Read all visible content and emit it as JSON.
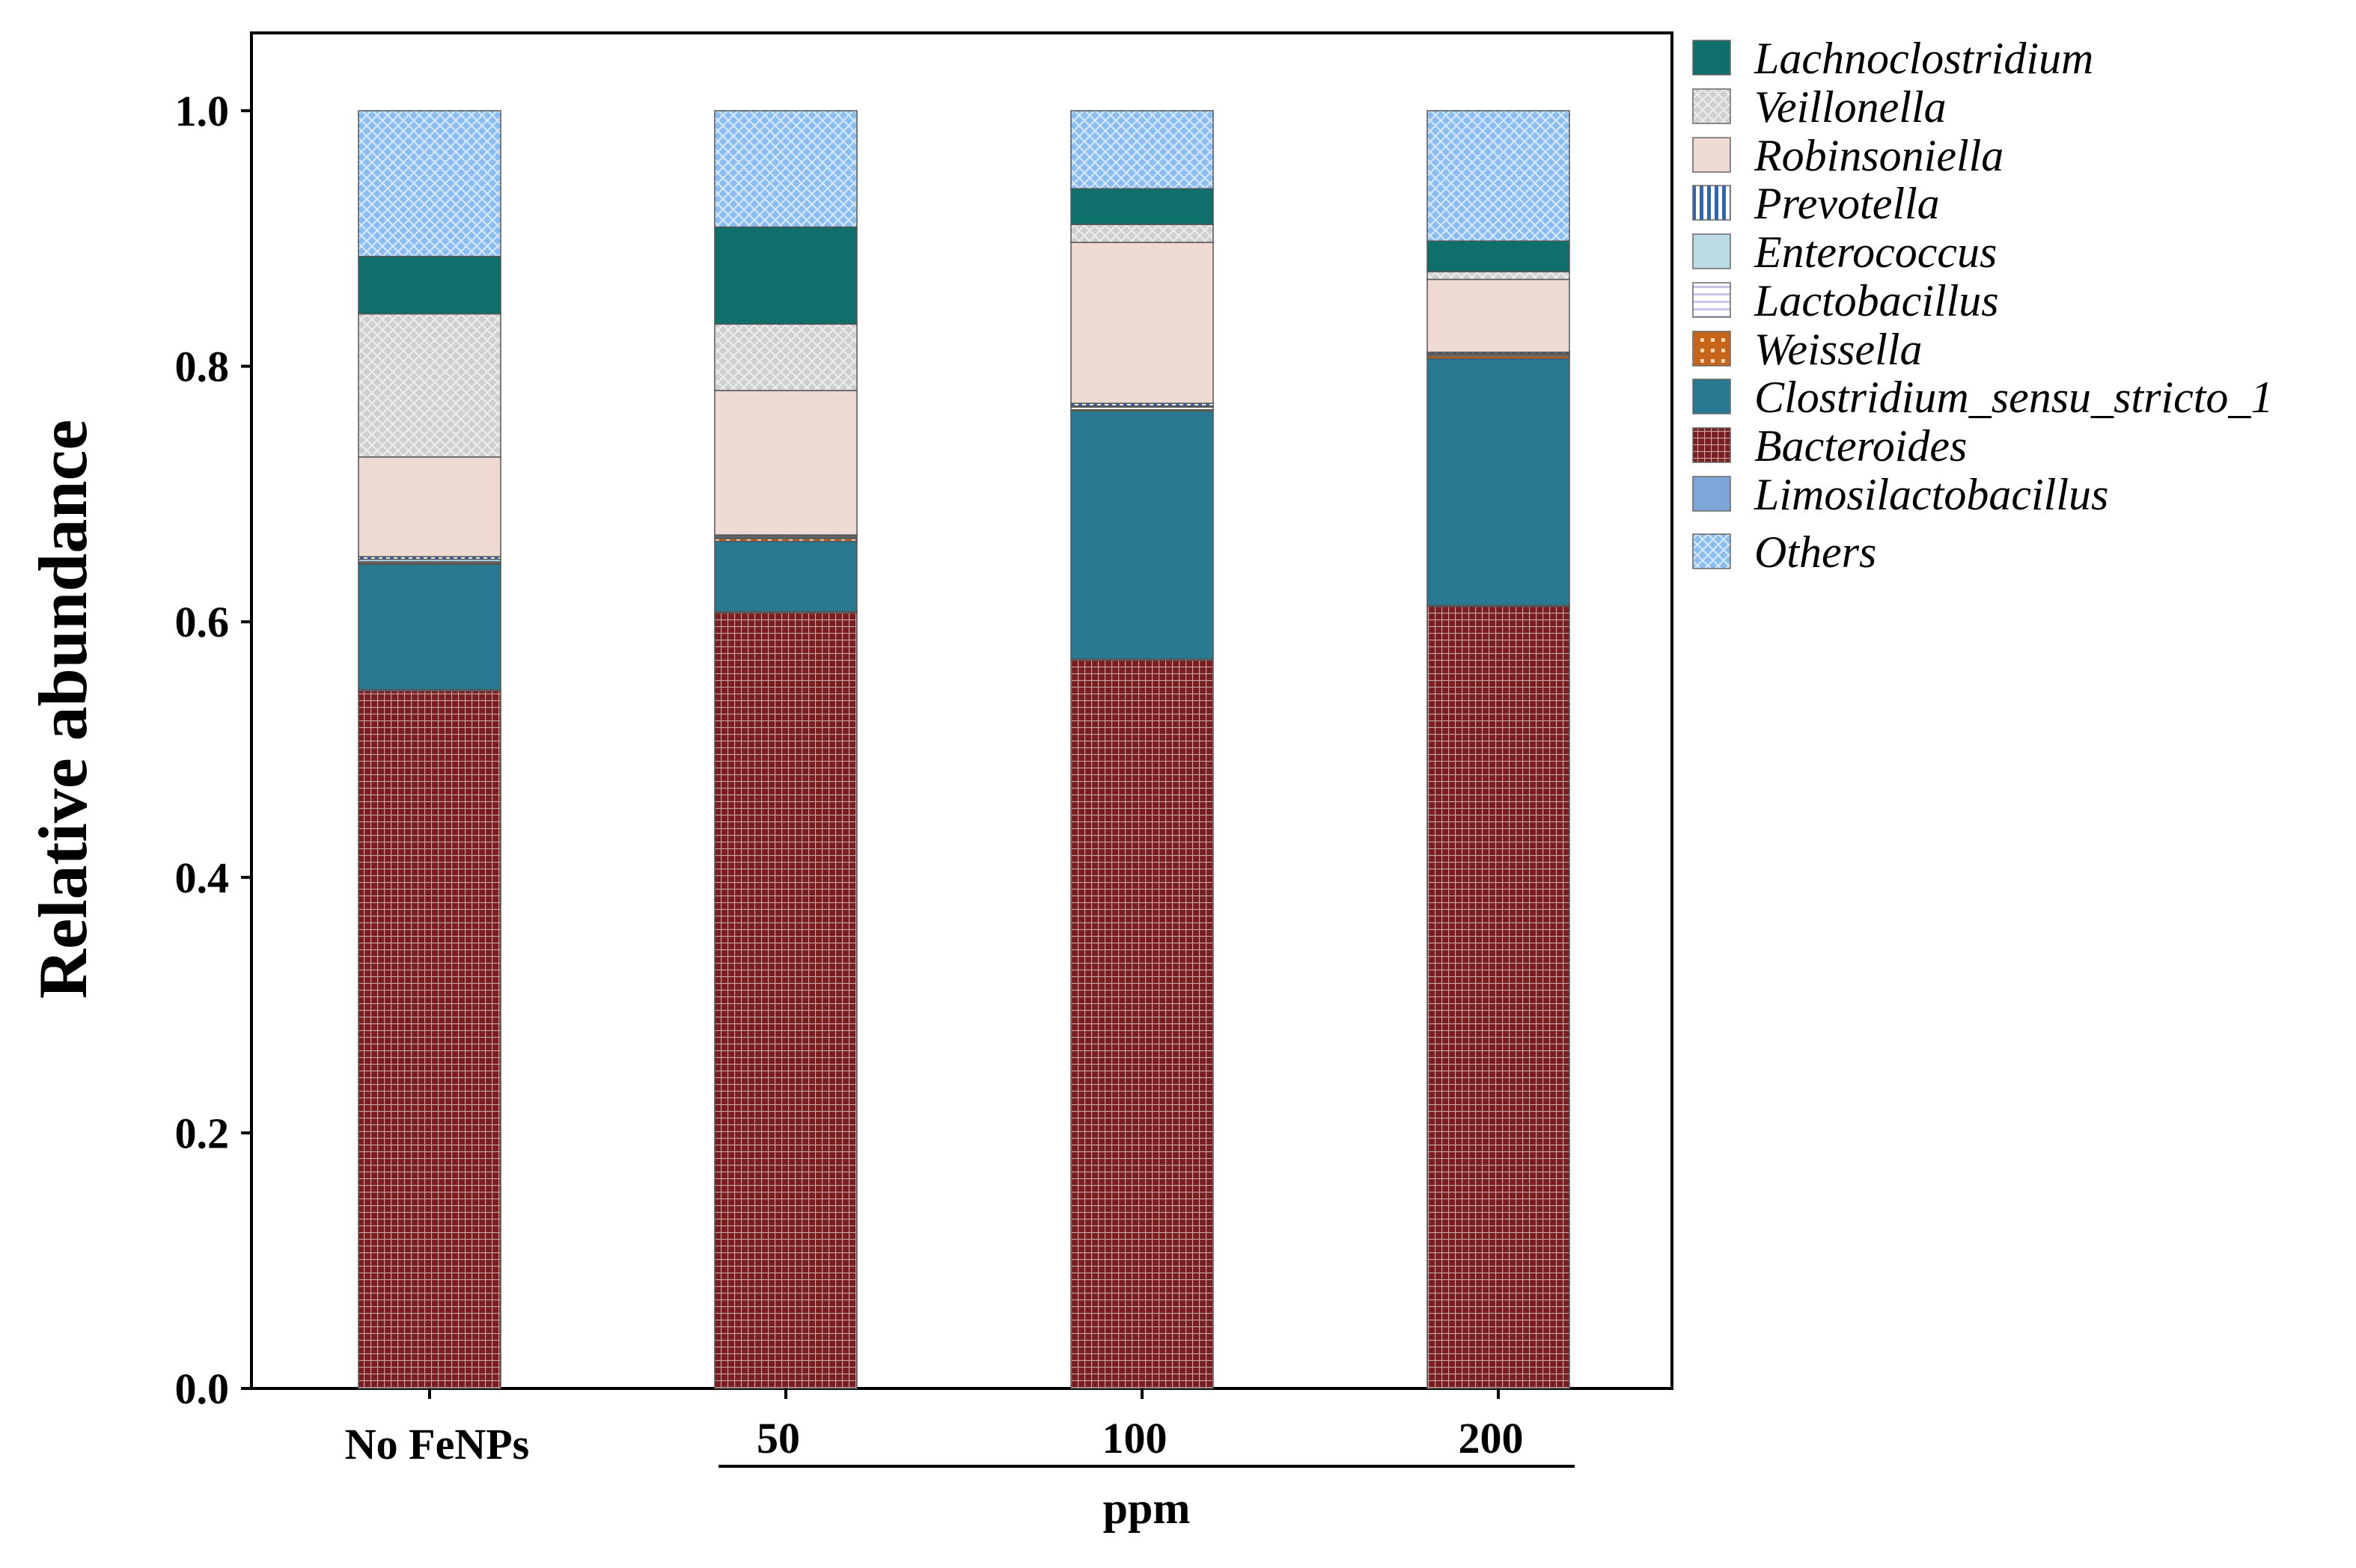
{
  "chart_data": {
    "type": "bar",
    "stacked": true,
    "categories": [
      "No FeNPs",
      "50",
      "100",
      "200"
    ],
    "xlabel": "ppm",
    "ylabel": "Relative abundance",
    "ylim": [
      0,
      1.06
    ],
    "yticks": [
      "0.0",
      "0.2",
      "0.4",
      "0.6",
      "0.8",
      "1.0"
    ],
    "ytick_values": [
      0,
      0.2,
      0.4,
      0.6,
      0.8,
      1.0
    ],
    "legend_position": "right",
    "series": [
      {
        "name": "Bacteroides",
        "color": "#7a1d1f",
        "pattern": "grid",
        "values": [
          0.546,
          0.607,
          0.57,
          0.612
        ]
      },
      {
        "name": "Limosilactobacillus",
        "color": "#7ea6d8",
        "pattern": "solid",
        "values": [
          0.001,
          0.001,
          0.001,
          0.001
        ]
      },
      {
        "name": "Clostridium_sensu_stricto_1",
        "color": "#277a91",
        "pattern": "solid",
        "values": [
          0.098,
          0.055,
          0.194,
          0.193
        ]
      },
      {
        "name": "Weissella",
        "color": "#c6651a",
        "pattern": "dots",
        "values": [
          0.001,
          0.002,
          0.001,
          0.002
        ]
      },
      {
        "name": "Lactobacillus",
        "color": "#c9c3ea",
        "pattern": "hlines",
        "values": [
          0.001,
          0.001,
          0.002,
          0.001
        ]
      },
      {
        "name": "Enterococcus",
        "color": "#bcdde6",
        "pattern": "solid",
        "values": [
          0.002,
          0.001,
          0.001,
          0.001
        ]
      },
      {
        "name": "Prevotella",
        "color": "#2e63b5",
        "pattern": "vlines",
        "values": [
          0.002,
          0.001,
          0.002,
          0.001
        ]
      },
      {
        "name": "Robinsoniella",
        "color": "#eedad3",
        "pattern": "solid",
        "values": [
          0.078,
          0.113,
          0.126,
          0.057
        ]
      },
      {
        "name": "Veillonella",
        "color": "#cfcfcf",
        "pattern": "crosshatch",
        "values": [
          0.112,
          0.052,
          0.014,
          0.006
        ]
      },
      {
        "name": "Lachnoclostridium",
        "color": "#0e6f6b",
        "pattern": "solid",
        "values": [
          0.045,
          0.076,
          0.028,
          0.024
        ]
      },
      {
        "name": "Others",
        "color": "#8bbdf2",
        "pattern": "crosshatch",
        "values": [
          0.114,
          0.091,
          0.061,
          0.102
        ]
      }
    ],
    "legend_order": [
      "Lachnoclostridium",
      "Veillonella",
      "Robinsoniella",
      "Prevotella",
      "Enterococcus",
      "Lactobacillus",
      "Weissella",
      "Clostridium_sensu_stricto_1",
      "Bacteroides",
      "Limosilactobacillus",
      "Others"
    ],
    "bracket_categories": [
      "50",
      "100",
      "200"
    ]
  }
}
